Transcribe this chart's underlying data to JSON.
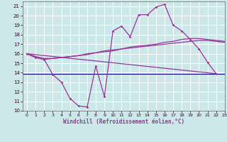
{
  "xlabel": "Windchill (Refroidissement éolien,°C)",
  "ylabel": "",
  "xlim": [
    -0.5,
    23
  ],
  "ylim": [
    10,
    21.5
  ],
  "yticks": [
    10,
    11,
    12,
    13,
    14,
    15,
    16,
    17,
    18,
    19,
    20,
    21
  ],
  "xticks": [
    0,
    1,
    2,
    3,
    4,
    5,
    6,
    7,
    8,
    9,
    10,
    11,
    12,
    13,
    14,
    15,
    16,
    17,
    18,
    19,
    20,
    21,
    22,
    23
  ],
  "bg_color": "#cce8e8",
  "grid_color": "#b0d0d0",
  "line_color": "#993399",
  "hline_color": "#000080",
  "hline_y": 13.9,
  "series1_y": [
    16.0,
    15.6,
    15.4,
    13.8,
    13.0,
    11.3,
    10.5,
    10.4,
    14.7,
    11.5,
    18.4,
    18.9,
    17.8,
    20.1,
    20.1,
    20.9,
    21.2,
    19.0,
    18.4,
    17.5,
    16.5,
    15.1,
    13.9,
    null
  ],
  "series2_y": [
    16.0,
    15.6,
    15.4,
    15.5,
    15.6,
    15.7,
    15.8,
    15.9,
    16.1,
    16.2,
    16.3,
    16.5,
    16.6,
    16.7,
    16.8,
    16.9,
    17.0,
    17.1,
    17.2,
    17.3,
    17.4,
    17.4,
    17.3,
    17.2
  ],
  "series3_y": [
    16.0,
    15.7,
    15.5,
    15.5,
    15.6,
    15.7,
    15.8,
    16.0,
    16.1,
    16.3,
    16.4,
    16.5,
    16.7,
    16.8,
    16.9,
    17.0,
    17.2,
    17.3,
    17.5,
    17.6,
    17.6,
    17.5,
    17.4,
    17.3
  ],
  "series4_x": [
    0,
    22
  ],
  "series4_y": [
    16.0,
    13.9
  ]
}
